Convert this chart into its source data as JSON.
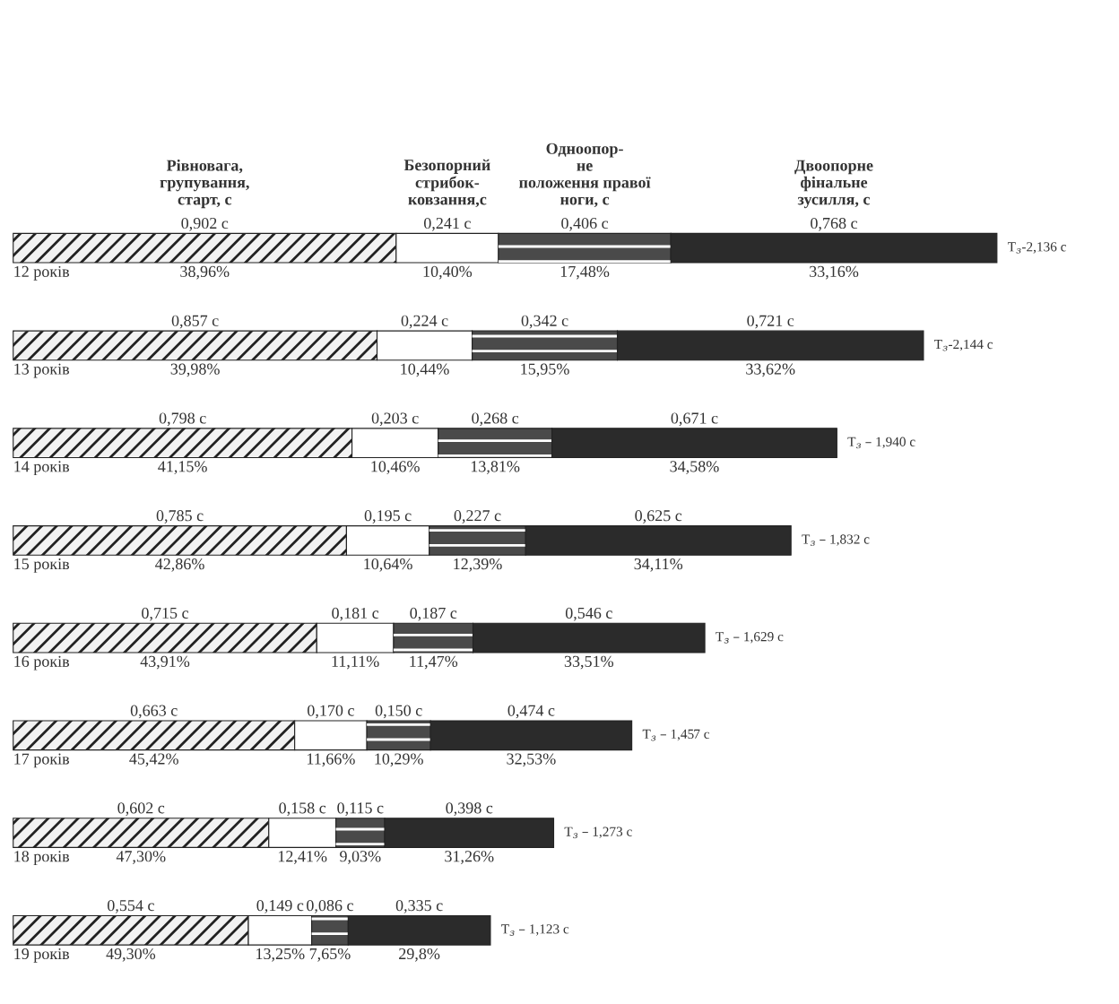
{
  "chart_data": {
    "type": "bar",
    "orientation": "horizontal",
    "stacked": true,
    "categories": [
      "12 років",
      "13 років",
      "14 років",
      "15 років",
      "16 років",
      "17 років",
      "18 років",
      "19 років"
    ],
    "series": [
      {
        "name": "Рівновага,\nгрупування,\nстарт, с",
        "color": "#f2f2f2",
        "values": [
          0.902,
          0.857,
          0.798,
          0.785,
          0.715,
          0.663,
          0.602,
          0.554
        ],
        "value_labels": [
          "0,902 c",
          "0,857 c",
          "0,798 c",
          "0,785 c",
          "0,715 c",
          "0,663 c",
          "0,602 c",
          "0,554 c"
        ]
      },
      {
        "name": "Безопорний\nстрибок-\nковзання,с",
        "color": "#ffffff",
        "values": [
          0.241,
          0.224,
          0.203,
          0.195,
          0.181,
          0.17,
          0.158,
          0.149
        ],
        "value_labels": [
          "0,241 c",
          "0,224 c",
          "0,203 c",
          "0,195 c",
          "0,181 c",
          "0,170 c",
          "0,158 c",
          "0,149 c"
        ]
      },
      {
        "name": "Одноопор-\nне\nположення правої\nноги, с",
        "color": "#4a4a4a",
        "values": [
          0.406,
          0.342,
          0.268,
          0.227,
          0.187,
          0.15,
          0.115,
          0.086
        ],
        "value_labels": [
          "0,406 c",
          "0,342 c",
          "0,268 c",
          "0,227 c",
          "0,187 c",
          "0,150 c",
          "0,115 c",
          "0,086 c"
        ]
      },
      {
        "name": "Двоопорне\nфінальне\nзусилля, с",
        "color": "#2b2b2b",
        "values": [
          0.768,
          0.721,
          0.671,
          0.625,
          0.546,
          0.474,
          0.398,
          0.335
        ],
        "value_labels": [
          "0,768 c",
          "0,721 c",
          "0,671 c",
          "0,625 c",
          "0,546 c",
          "0,474 c",
          "0,398 c",
          "0,335 c"
        ]
      }
    ],
    "annotations": [
      "38,96%",
      "10,40%",
      "17,48%",
      "33,16%",
      "T$_{з}$-2,136 c",
      "39,98%",
      "10,44%",
      "15,95%",
      "33,62%",
      "T$_{з}$-2,144 c",
      "41,15%",
      "10,46%",
      "13,81%",
      "34,58%",
      "T$_{з}$ – 1,940 c",
      "42,86%",
      "10,64%",
      "12,39%",
      "34,11%",
      "T$_{з}$ – 1,832 c",
      "43,91%",
      "11,11%",
      "11,47%",
      "33,51%",
      "T$_{з}$ – 1,629 c",
      "45,42%",
      "11,66%",
      "10,29%",
      "32,53%",
      "T$_{з}$ – 1,457 c",
      "47,30%",
      "12,41%",
      "9,03%",
      "31,26%",
      "T$_{з}$ – 1,273 c",
      "49,30%",
      "13,25%",
      "7,65%",
      "29,8%",
      "T$_{з}$ – 1,123 c"
    ]
  }
}
